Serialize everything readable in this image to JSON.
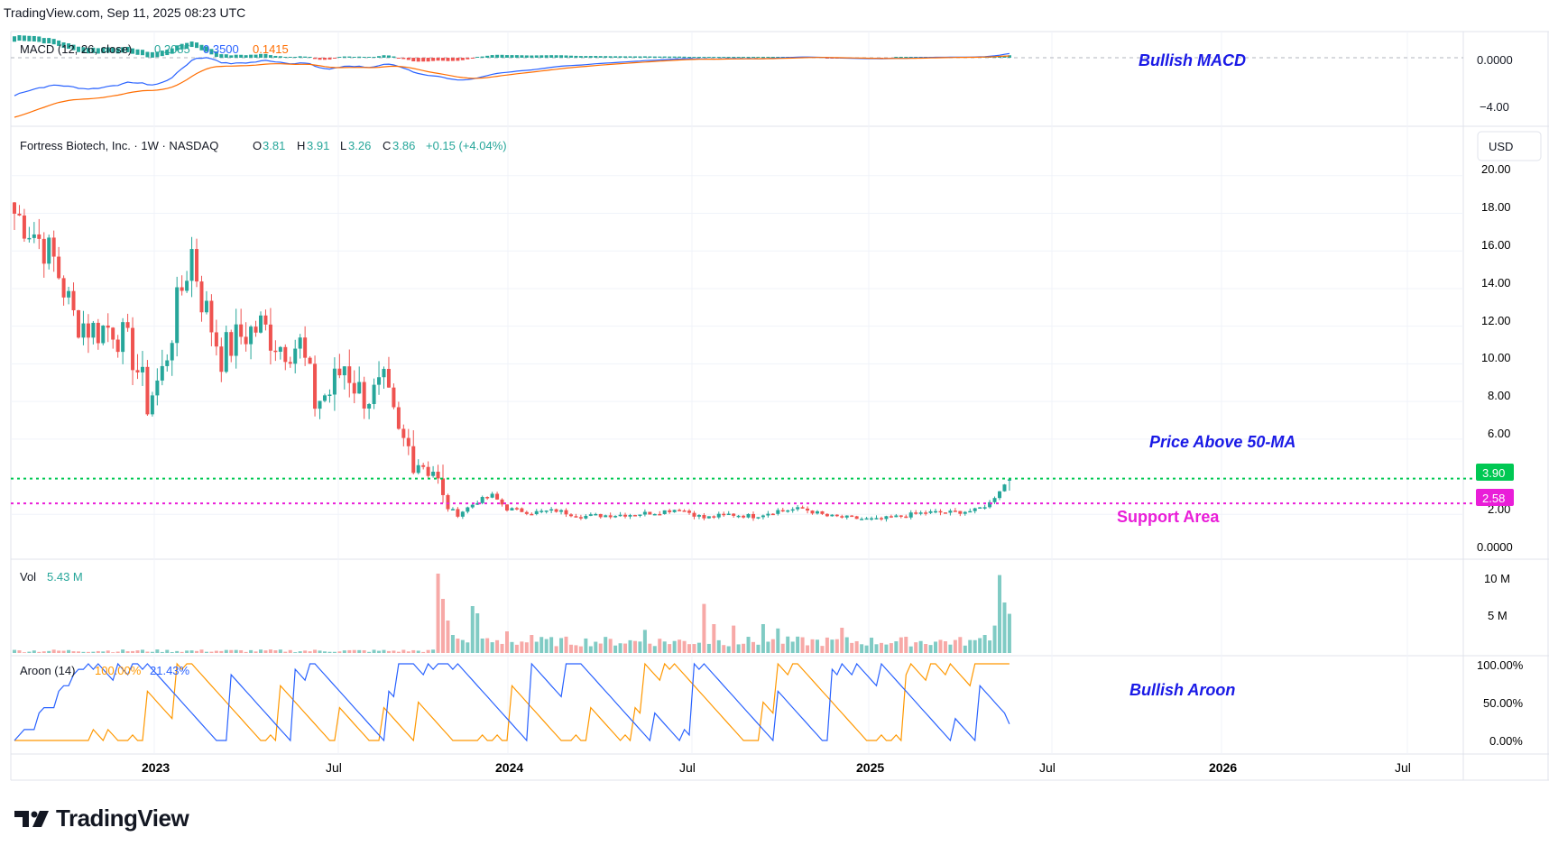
{
  "header": {
    "source": "TradingView.com, Sep 11, 2025 08:23 UTC"
  },
  "brand": {
    "name": "TradingView"
  },
  "colors": {
    "up": "#26a69a",
    "down": "#ef5350",
    "macd": "#2962ff",
    "signal": "#ff6d00",
    "support": "#e91ed8",
    "resistance": "#00c853",
    "annotation": "#1a1ae6"
  },
  "macd_panel": {
    "label": "MACD (12, 26, close)",
    "v1": "0.2085",
    "v2": "0.3500",
    "v3": "0.1415",
    "annotation": "Bullish MACD",
    "axis": [
      "0.0000",
      "−4.00"
    ]
  },
  "price_panel": {
    "symbol": "Fortress Biotech, Inc. · 1W · NASDAQ",
    "o_label": "O",
    "o": "3.81",
    "h_label": "H",
    "h": "3.91",
    "l_label": "L",
    "l": "3.26",
    "c_label": "C",
    "c": "3.86",
    "change": "+0.15 (+4.04%)",
    "currency": "USD",
    "axis": [
      "20.00",
      "18.00",
      "16.00",
      "14.00",
      "12.00",
      "10.00",
      "8.00",
      "6.00",
      "2.00",
      "0.0000"
    ],
    "resistance_value": "3.90",
    "support_value": "2.58",
    "annotation_ma": "Price Above 50-MA",
    "annotation_support": "Support Area"
  },
  "volume_panel": {
    "label": "Vol",
    "value": "5.43 M",
    "axis": [
      "10 M",
      "5 M"
    ]
  },
  "aroon_panel": {
    "label": "Aroon (14)",
    "up": "100.00%",
    "down": "21.43%",
    "annotation": "Bullish Aroon",
    "axis": [
      "100.00%",
      "50.00%",
      "0.00%"
    ]
  },
  "time_axis": [
    "2023",
    "Jul",
    "2024",
    "Jul",
    "2025",
    "Jul",
    "2026",
    "Jul"
  ],
  "chart_data": {
    "type": "candlestick",
    "symbol": "Fortress Biotech, Inc.",
    "interval": "1W",
    "exchange": "NASDAQ",
    "last": {
      "open": 3.81,
      "high": 3.91,
      "low": 3.26,
      "close": 3.86,
      "change": 0.15,
      "change_pct": 4.04
    },
    "horizontal_levels": [
      {
        "label": "3.90",
        "value": 3.9
      },
      {
        "label": "2.58",
        "value": 2.58
      }
    ],
    "price_ylim": [
      0,
      20.5
    ],
    "volume_ylim": [
      0,
      12
    ],
    "macd_ylim": [
      -6,
      0.5
    ],
    "price_anchors": [
      [
        0,
        18.0
      ],
      [
        4,
        17.0
      ],
      [
        8,
        15.5
      ],
      [
        12,
        12.5
      ],
      [
        16,
        11.8
      ],
      [
        20,
        12.0
      ],
      [
        24,
        10.5
      ],
      [
        27,
        8.0
      ],
      [
        30,
        9.5
      ],
      [
        33,
        13.0
      ],
      [
        36,
        16.0
      ],
      [
        38,
        13.5
      ],
      [
        42,
        10.5
      ],
      [
        46,
        11.5
      ],
      [
        50,
        12.0
      ],
      [
        54,
        11.0
      ],
      [
        58,
        11.0
      ],
      [
        61,
        8.0
      ],
      [
        64,
        8.5
      ],
      [
        67,
        10.0
      ],
      [
        70,
        8.5
      ],
      [
        73,
        8.3
      ],
      [
        75,
        8.7
      ],
      [
        78,
        6.0
      ],
      [
        82,
        5.0
      ],
      [
        85,
        4.5
      ],
      [
        87,
        2.5
      ],
      [
        90,
        2.0
      ],
      [
        94,
        2.7
      ],
      [
        97,
        3.0
      ],
      [
        100,
        2.3
      ],
      [
        105,
        2.1
      ],
      [
        110,
        2.2
      ],
      [
        115,
        1.9
      ],
      [
        125,
        2.0
      ],
      [
        130,
        2.1
      ],
      [
        135,
        2.3
      ],
      [
        140,
        1.8
      ],
      [
        145,
        2.0
      ],
      [
        150,
        1.9
      ],
      [
        155,
        2.2
      ],
      [
        160,
        2.3
      ],
      [
        165,
        1.9
      ],
      [
        170,
        1.8
      ],
      [
        175,
        1.7
      ],
      [
        180,
        1.9
      ],
      [
        185,
        2.1
      ],
      [
        190,
        2.1
      ],
      [
        195,
        2.2
      ],
      [
        198,
        2.6
      ],
      [
        200,
        3.3
      ],
      [
        202,
        3.86
      ]
    ],
    "volume_spikes": [
      [
        86,
        11.0
      ],
      [
        87,
        7.5
      ],
      [
        88,
        4.5
      ],
      [
        89,
        2.5
      ],
      [
        90,
        2.0
      ],
      [
        91,
        1.8
      ],
      [
        93,
        6.5
      ],
      [
        94,
        5.5
      ],
      [
        95,
        2.0
      ],
      [
        100,
        3.0
      ],
      [
        105,
        2.5
      ],
      [
        128,
        3.2
      ],
      [
        140,
        6.8
      ],
      [
        142,
        4.0
      ],
      [
        146,
        3.8
      ],
      [
        152,
        4.0
      ],
      [
        155,
        3.4
      ],
      [
        168,
        3.5
      ],
      [
        194,
        1.8
      ],
      [
        197,
        2.5
      ],
      [
        199,
        3.8
      ],
      [
        200,
        10.8
      ],
      [
        201,
        7.0
      ],
      [
        202,
        5.43
      ]
    ],
    "macd_last": {
      "macd": 0.35,
      "signal": 0.1415,
      "histogram": 0.2085
    },
    "aroon_last": {
      "up": 100.0,
      "down": 21.43
    }
  }
}
